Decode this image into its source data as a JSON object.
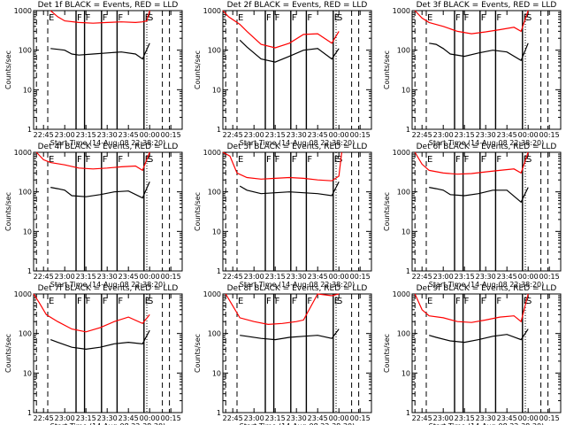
{
  "chart_data": [
    {
      "type": "line",
      "title": "Det 1f BLACK = Events, RED = LLD",
      "ylabel": "Counts/sec",
      "xlabel": "Start Time (14-Aug-08 22:38:20)",
      "x_ticks": [
        "22:45",
        "23:00",
        "23:15",
        "23:30",
        "23:45",
        "00:00",
        "00:15"
      ],
      "y_ticks": [
        "1",
        "10",
        "100",
        "1000"
      ],
      "ylim": [
        1,
        1000
      ],
      "y_scale": "log",
      "markers": [
        "E",
        "F",
        "F",
        "F",
        "F",
        "E",
        "S"
      ],
      "series": [
        {
          "color": "#ff0000",
          "x": [
            "22:50",
            "22:55",
            "23:00",
            "23:10",
            "23:20",
            "23:30",
            "23:40",
            "23:50",
            "23:55",
            "23:58",
            "00:00"
          ],
          "values": [
            1000,
            700,
            550,
            500,
            480,
            500,
            520,
            500,
            520,
            550,
            1000
          ]
        },
        {
          "color": "#000000",
          "x": [
            "22:50",
            "22:55",
            "23:00",
            "23:05",
            "23:10",
            "23:20",
            "23:30",
            "23:40",
            "23:50",
            "23:55",
            "00:00"
          ],
          "values": [
            110,
            105,
            100,
            80,
            75,
            80,
            85,
            90,
            80,
            60,
            150
          ]
        }
      ]
    },
    {
      "type": "line",
      "title": "Det 2f BLACK = Events, RED = LLD",
      "ylabel": "Counts/sec",
      "xlabel": "Start Time (14-Aug-08 22:38:20)",
      "x_ticks": [
        "22:45",
        "23:00",
        "23:15",
        "23:30",
        "23:45",
        "00:00",
        "00:15"
      ],
      "y_ticks": [
        "1",
        "10",
        "100",
        "1000"
      ],
      "ylim": [
        1,
        1000
      ],
      "y_scale": "log",
      "markers": [
        "E",
        "F",
        "F",
        "F",
        "F",
        "E",
        "S"
      ],
      "series": [
        {
          "color": "#ff0000",
          "x": [
            "22:38",
            "22:42",
            "22:50",
            "22:55",
            "23:05",
            "23:15",
            "23:25",
            "23:35",
            "23:45",
            "23:55",
            "00:00"
          ],
          "values": [
            1000,
            700,
            450,
            300,
            140,
            115,
            150,
            250,
            260,
            150,
            300
          ]
        },
        {
          "color": "#000000",
          "x": [
            "22:50",
            "22:55",
            "23:05",
            "23:15",
            "23:25",
            "23:35",
            "23:45",
            "23:55",
            "00:00"
          ],
          "values": [
            180,
            120,
            60,
            50,
            70,
            100,
            110,
            60,
            110
          ]
        }
      ]
    },
    {
      "type": "line",
      "title": "Det 3f BLACK = Events, RED = LLD",
      "ylabel": "Counts/sec",
      "xlabel": "Start Time (14-Aug-08 22:38:20)",
      "x_ticks": [
        "22:45",
        "23:00",
        "23:15",
        "23:30",
        "23:45",
        "00:00",
        "00:15"
      ],
      "y_ticks": [
        "1",
        "10",
        "100",
        "1000"
      ],
      "ylim": [
        1,
        1000
      ],
      "y_scale": "log",
      "markers": [
        "E",
        "F",
        "F",
        "F",
        "F",
        "E",
        "S"
      ],
      "series": [
        {
          "color": "#ff0000",
          "x": [
            "22:40",
            "22:45",
            "22:50",
            "23:00",
            "23:10",
            "23:20",
            "23:30",
            "23:40",
            "23:50",
            "23:55",
            "00:00"
          ],
          "values": [
            1000,
            650,
            500,
            400,
            300,
            260,
            290,
            330,
            380,
            300,
            1000
          ]
        },
        {
          "color": "#000000",
          "x": [
            "22:50",
            "22:55",
            "23:00",
            "23:05",
            "23:15",
            "23:25",
            "23:35",
            "23:45",
            "23:55",
            "00:00"
          ],
          "values": [
            150,
            140,
            110,
            80,
            70,
            85,
            100,
            90,
            55,
            150
          ]
        }
      ]
    },
    {
      "type": "line",
      "title": "Det 4f BLACK = Events, RED = LLD",
      "ylabel": "Counts/sec",
      "xlabel": "Start Time (14-Aug-08 22:38:20)",
      "x_ticks": [
        "22:45",
        "23:00",
        "23:15",
        "23:30",
        "23:45",
        "00:00",
        "00:15"
      ],
      "y_ticks": [
        "1",
        "10",
        "100",
        "1000"
      ],
      "ylim": [
        1,
        1000
      ],
      "y_scale": "log",
      "markers": [
        "E",
        "F",
        "F",
        "F",
        "F",
        "E",
        "S"
      ],
      "series": [
        {
          "color": "#ff0000",
          "x": [
            "22:40",
            "22:45",
            "22:50",
            "23:00",
            "23:10",
            "23:20",
            "23:30",
            "23:40",
            "23:50",
            "23:55",
            "00:00"
          ],
          "values": [
            1000,
            650,
            550,
            480,
            400,
            380,
            400,
            430,
            450,
            350,
            1000
          ]
        },
        {
          "color": "#000000",
          "x": [
            "22:50",
            "22:55",
            "23:00",
            "23:05",
            "23:15",
            "23:25",
            "23:35",
            "23:45",
            "23:55",
            "00:00"
          ],
          "values": [
            130,
            120,
            110,
            80,
            75,
            85,
            100,
            105,
            70,
            180
          ]
        }
      ]
    },
    {
      "type": "line",
      "title": "Det 5f BLACK = Events, RED = LLD",
      "ylabel": "Counts/sec",
      "xlabel": "Start Time (14-Aug-08 22:38:20)",
      "x_ticks": [
        "22:45",
        "23:00",
        "23:15",
        "23:30",
        "23:45",
        "00:00",
        "00:15"
      ],
      "y_ticks": [
        "1",
        "10",
        "100",
        "1000"
      ],
      "ylim": [
        1,
        1000
      ],
      "y_scale": "log",
      "markers": [
        "E",
        "F",
        "F",
        "F",
        "F",
        "E",
        "S"
      ],
      "series": [
        {
          "color": "#ff0000",
          "x": [
            "22:38",
            "22:43",
            "22:48",
            "22:55",
            "23:05",
            "23:15",
            "23:25",
            "23:35",
            "23:45",
            "23:55",
            "00:00",
            "00:02"
          ],
          "values": [
            1000,
            800,
            300,
            230,
            210,
            220,
            230,
            220,
            200,
            190,
            250,
            1000
          ]
        },
        {
          "color": "#000000",
          "x": [
            "22:50",
            "22:55",
            "23:05",
            "23:15",
            "23:25",
            "23:35",
            "23:45",
            "23:55",
            "00:00"
          ],
          "values": [
            140,
            110,
            90,
            95,
            100,
            95,
            90,
            80,
            180
          ]
        }
      ]
    },
    {
      "type": "line",
      "title": "Det 6f BLACK = Events, RED = LLD",
      "ylabel": "Counts/sec",
      "xlabel": "Start Time (14-Aug-08 22:38:20)",
      "x_ticks": [
        "22:45",
        "23:00",
        "23:15",
        "23:30",
        "23:45",
        "00:00",
        "00:15"
      ],
      "y_ticks": [
        "1",
        "10",
        "100",
        "1000"
      ],
      "ylim": [
        1,
        1000
      ],
      "y_scale": "log",
      "markers": [
        "E",
        "F",
        "F",
        "F",
        "F",
        "E",
        "S"
      ],
      "series": [
        {
          "color": "#ff0000",
          "x": [
            "22:40",
            "22:45",
            "22:50",
            "23:00",
            "23:10",
            "23:20",
            "23:30",
            "23:40",
            "23:50",
            "23:55",
            "00:00"
          ],
          "values": [
            1000,
            500,
            350,
            300,
            280,
            290,
            320,
            350,
            380,
            300,
            1000
          ]
        },
        {
          "color": "#000000",
          "x": [
            "22:50",
            "22:55",
            "23:00",
            "23:05",
            "23:15",
            "23:25",
            "23:35",
            "23:45",
            "23:55",
            "00:00"
          ],
          "values": [
            130,
            120,
            110,
            85,
            80,
            90,
            110,
            110,
            55,
            130
          ]
        }
      ]
    },
    {
      "type": "line",
      "title": "Det 7f BLACK = Events, RED = LLD",
      "ylabel": "Counts/sec",
      "xlabel": "Start Time (14-Aug-08 22:38:20)",
      "x_ticks": [
        "22:45",
        "23:00",
        "23:15",
        "23:30",
        "23:45",
        "00:00",
        "00:15"
      ],
      "y_ticks": [
        "1",
        "10",
        "100",
        "1000"
      ],
      "ylim": [
        1,
        1000
      ],
      "y_scale": "log",
      "markers": [
        "E",
        "F",
        "F",
        "F",
        "F",
        "E",
        "S"
      ],
      "series": [
        {
          "color": "#ff0000",
          "x": [
            "22:38",
            "22:42",
            "22:47",
            "22:55",
            "23:05",
            "23:15",
            "23:25",
            "23:35",
            "23:45",
            "23:55",
            "00:00"
          ],
          "values": [
            1000,
            600,
            300,
            200,
            130,
            110,
            140,
            200,
            260,
            180,
            300
          ]
        },
        {
          "color": "#000000",
          "x": [
            "22:50",
            "22:55",
            "23:05",
            "23:15",
            "23:25",
            "23:35",
            "23:45",
            "23:55",
            "00:00"
          ],
          "values": [
            70,
            60,
            45,
            40,
            45,
            55,
            60,
            55,
            120
          ]
        }
      ]
    },
    {
      "type": "line",
      "title": "Det 8f BLACK = Events, RED = LLD",
      "ylabel": "Counts/sec",
      "xlabel": "Start Time (14-Aug-08 22:38:20)",
      "x_ticks": [
        "22:45",
        "23:00",
        "23:15",
        "23:30",
        "23:45",
        "00:00",
        "00:15"
      ],
      "y_ticks": [
        "1",
        "10",
        "100",
        "1000"
      ],
      "ylim": [
        1,
        1000
      ],
      "y_scale": "log",
      "markers": [
        "E",
        "F",
        "F",
        "F",
        "F",
        "E",
        "S"
      ],
      "series": [
        {
          "color": "#ff0000",
          "x": [
            "22:40",
            "22:45",
            "22:50",
            "23:00",
            "23:10",
            "23:20",
            "23:30",
            "23:35",
            "23:45",
            "23:55",
            "00:00"
          ],
          "values": [
            1000,
            500,
            250,
            200,
            170,
            180,
            200,
            220,
            1000,
            900,
            1000
          ]
        },
        {
          "color": "#000000",
          "x": [
            "22:50",
            "22:55",
            "23:05",
            "23:15",
            "23:25",
            "23:35",
            "23:45",
            "23:55",
            "00:00"
          ],
          "values": [
            90,
            85,
            75,
            70,
            80,
            85,
            90,
            75,
            130
          ]
        }
      ]
    },
    {
      "type": "line",
      "title": "Det 9f BLACK = Events, RED = LLD",
      "ylabel": "Counts/sec",
      "xlabel": "Start Time (14-Aug-08 22:38:20)",
      "x_ticks": [
        "22:45",
        "23:00",
        "23:15",
        "23:30",
        "23:45",
        "00:00",
        "00:15"
      ],
      "y_ticks": [
        "1",
        "10",
        "100",
        "1000"
      ],
      "ylim": [
        1,
        1000
      ],
      "y_scale": "log",
      "markers": [
        "E",
        "F",
        "F",
        "F",
        "F",
        "E",
        "S"
      ],
      "series": [
        {
          "color": "#ff0000",
          "x": [
            "22:40",
            "22:45",
            "22:50",
            "23:00",
            "23:10",
            "23:20",
            "23:30",
            "23:40",
            "23:50",
            "23:55",
            "00:00"
          ],
          "values": [
            1000,
            400,
            280,
            250,
            200,
            190,
            220,
            260,
            280,
            200,
            1000
          ]
        },
        {
          "color": "#000000",
          "x": [
            "22:50",
            "22:55",
            "23:05",
            "23:15",
            "23:25",
            "23:35",
            "23:45",
            "23:55",
            "00:00"
          ],
          "values": [
            90,
            80,
            65,
            60,
            70,
            85,
            95,
            70,
            130
          ]
        }
      ]
    }
  ]
}
